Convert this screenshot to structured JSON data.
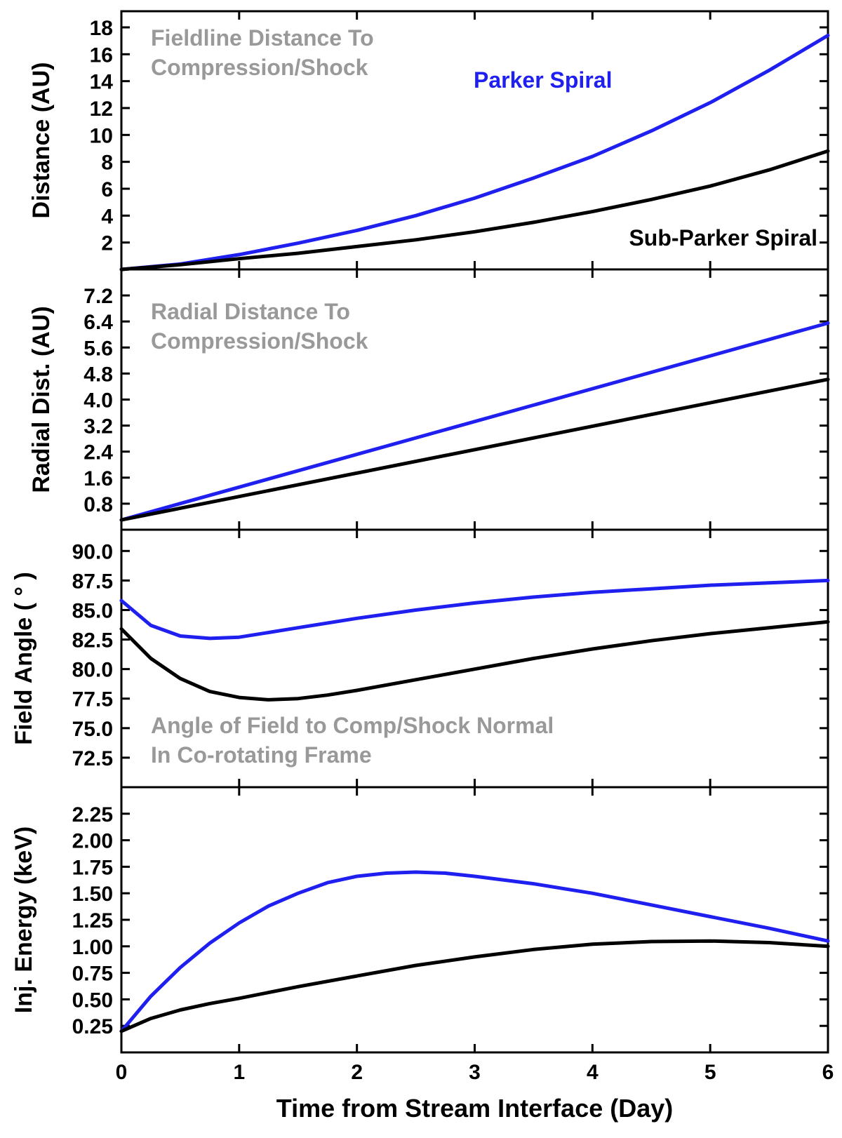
{
  "colors": {
    "parker": "#1f1ff0",
    "subparker": "#000000",
    "annotation": "#999999",
    "axis": "#000000"
  },
  "chart_data": [
    {
      "type": "line",
      "ylabel": "Distance (AU)",
      "annotation": [
        "Fieldline Distance To",
        "Compression/Shock"
      ],
      "legend": {
        "parker": "Parker Spiral",
        "subparker": "Sub-Parker Spiral"
      },
      "ylim": [
        0,
        19.2
      ],
      "yticks": [
        2,
        4,
        6,
        8,
        10,
        12,
        14,
        16,
        18
      ],
      "yticklabels": [
        "2",
        "4",
        "6",
        "8",
        "10",
        "12",
        "14",
        "16",
        "18"
      ],
      "series": [
        {
          "name": "Parker Spiral",
          "color_key": "parker",
          "x": [
            0,
            0.5,
            1,
            1.5,
            2,
            2.5,
            3,
            3.5,
            4,
            4.5,
            5,
            5.5,
            6
          ],
          "values": [
            0,
            0.4,
            1.1,
            1.95,
            2.9,
            4.0,
            5.3,
            6.8,
            8.4,
            10.3,
            12.4,
            14.8,
            17.4
          ]
        },
        {
          "name": "Sub-Parker Spiral",
          "color_key": "subparker",
          "x": [
            0,
            0.5,
            1,
            1.5,
            2,
            2.5,
            3,
            3.5,
            4,
            4.5,
            5,
            5.5,
            6
          ],
          "values": [
            0,
            0.35,
            0.8,
            1.2,
            1.7,
            2.2,
            2.8,
            3.5,
            4.3,
            5.2,
            6.2,
            7.4,
            8.8
          ]
        }
      ]
    },
    {
      "type": "line",
      "ylabel": "Radial Dist. (AU)",
      "annotation": [
        "Radial Distance To",
        "Compression/Shock"
      ],
      "ylim": [
        0,
        8.0
      ],
      "yticks": [
        0.8,
        1.6,
        2.4,
        3.2,
        4.0,
        4.8,
        5.6,
        6.4,
        7.2
      ],
      "yticklabels": [
        "0.8",
        "1.6",
        "2.4",
        "3.2",
        "4.0",
        "4.8",
        "5.6",
        "6.4",
        "7.2"
      ],
      "series": [
        {
          "name": "Parker Spiral",
          "color_key": "parker",
          "x": [
            0,
            6
          ],
          "values": [
            0.3,
            6.35
          ]
        },
        {
          "name": "Sub-Parker Spiral",
          "color_key": "subparker",
          "x": [
            0,
            6
          ],
          "values": [
            0.3,
            4.62
          ]
        }
      ]
    },
    {
      "type": "line",
      "ylabel": "Field Angle ( ° )",
      "annotation": [
        "Angle of Field to Comp/Shock Normal",
        " In Co-rotating Frame"
      ],
      "ylim": [
        70,
        91.8
      ],
      "yticks": [
        72.5,
        75.0,
        77.5,
        80.0,
        82.5,
        85.0,
        87.5,
        90.0
      ],
      "yticklabels": [
        "72.5",
        "75.0",
        "77.5",
        "80.0",
        "82.5",
        "85.0",
        "87.5",
        "90.0"
      ],
      "series": [
        {
          "name": "Parker Spiral",
          "color_key": "parker",
          "x": [
            0,
            0.25,
            0.5,
            0.75,
            1,
            1.25,
            1.5,
            2,
            2.5,
            3,
            3.5,
            4,
            4.5,
            5,
            5.5,
            6
          ],
          "values": [
            85.8,
            83.7,
            82.8,
            82.6,
            82.7,
            83.1,
            83.5,
            84.3,
            85.0,
            85.6,
            86.1,
            86.5,
            86.8,
            87.1,
            87.3,
            87.5
          ]
        },
        {
          "name": "Sub-Parker Spiral",
          "color_key": "subparker",
          "x": [
            0,
            0.25,
            0.5,
            0.75,
            1,
            1.25,
            1.5,
            1.75,
            2,
            2.5,
            3,
            3.5,
            4,
            4.5,
            5,
            5.5,
            6
          ],
          "values": [
            83.4,
            80.9,
            79.2,
            78.1,
            77.6,
            77.4,
            77.5,
            77.8,
            78.2,
            79.1,
            80.0,
            80.9,
            81.7,
            82.4,
            83.0,
            83.5,
            84.0
          ]
        }
      ]
    },
    {
      "type": "line",
      "ylabel": "Inj. Energy (keV)",
      "ylim": [
        0,
        2.5
      ],
      "yticks": [
        0.25,
        0.5,
        0.75,
        1.0,
        1.25,
        1.5,
        1.75,
        2.0,
        2.25
      ],
      "yticklabels": [
        "0.25",
        "0.50",
        "0.75",
        "1.00",
        "1.25",
        "1.50",
        "1.75",
        "2.00",
        "2.25"
      ],
      "xticks": [
        0,
        1,
        2,
        3,
        4,
        5,
        6
      ],
      "xticklabels": [
        "0",
        "1",
        "2",
        "3",
        "4",
        "5",
        "6"
      ],
      "xlabel": "Time from Stream Interface (Day)",
      "series": [
        {
          "name": "Parker Spiral",
          "color_key": "parker",
          "x": [
            0,
            0.25,
            0.5,
            0.75,
            1,
            1.25,
            1.5,
            1.75,
            2,
            2.25,
            2.5,
            2.75,
            3,
            3.5,
            4,
            4.5,
            5,
            5.5,
            6
          ],
          "values": [
            0.2,
            0.53,
            0.8,
            1.03,
            1.22,
            1.38,
            1.5,
            1.6,
            1.66,
            1.69,
            1.7,
            1.69,
            1.66,
            1.59,
            1.5,
            1.39,
            1.28,
            1.17,
            1.05
          ]
        },
        {
          "name": "Sub-Parker Spiral",
          "color_key": "subparker",
          "x": [
            0,
            0.25,
            0.5,
            0.75,
            1,
            1.5,
            2,
            2.5,
            3,
            3.5,
            4,
            4.5,
            5,
            5.5,
            6
          ],
          "values": [
            0.2,
            0.32,
            0.4,
            0.46,
            0.51,
            0.62,
            0.72,
            0.82,
            0.9,
            0.97,
            1.02,
            1.045,
            1.05,
            1.035,
            1.0
          ]
        }
      ]
    }
  ]
}
